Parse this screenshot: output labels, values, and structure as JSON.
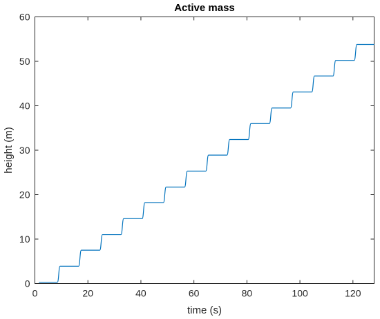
{
  "chart_data": {
    "type": "line",
    "title": "Active mass",
    "xlabel": "time (s)",
    "ylabel": "height (m)",
    "xlim": [
      0,
      128
    ],
    "ylim": [
      0,
      60
    ],
    "xticks": [
      0,
      20,
      40,
      60,
      80,
      100,
      120
    ],
    "yticks": [
      0,
      10,
      20,
      30,
      40,
      50,
      60
    ],
    "grid": false,
    "color": "#0072BD",
    "series": [
      {
        "x": [
          1.5,
          8.5,
          9.5,
          16.5,
          17.5,
          24.5,
          25.5,
          32.5,
          33.5,
          40.5,
          41.5,
          48.5,
          49.5,
          56.5,
          57.5,
          64.5,
          65.5,
          72.5,
          73.5,
          80.5,
          81.5,
          88.5,
          89.5,
          96.5,
          97.5,
          104.5,
          105.5,
          112.5,
          113.5,
          120.5,
          121.5,
          128
        ],
        "y": [
          0.3,
          0.3,
          3.9,
          3.9,
          7.5,
          7.5,
          11.0,
          11.0,
          14.6,
          14.6,
          18.2,
          18.2,
          21.7,
          21.7,
          25.3,
          25.3,
          28.9,
          28.9,
          32.4,
          32.4,
          36.0,
          36.0,
          39.5,
          39.5,
          43.1,
          43.1,
          46.7,
          46.7,
          50.2,
          50.2,
          53.8,
          53.8
        ]
      }
    ]
  }
}
